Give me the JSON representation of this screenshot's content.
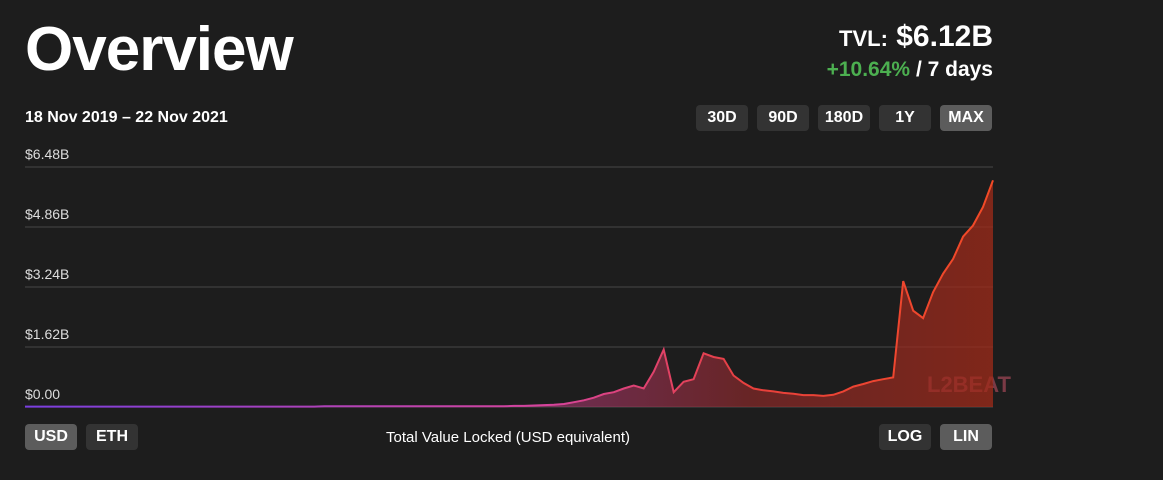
{
  "header": {
    "title": "Overview",
    "tvl_label": "TVL:",
    "tvl_value": "$6.12B",
    "change": "+10.64%",
    "change_period": "/ 7 days"
  },
  "controls": {
    "ranges": [
      "30D",
      "90D",
      "180D",
      "1Y",
      "MAX"
    ],
    "active_range": "MAX",
    "currencies": [
      "USD",
      "ETH"
    ],
    "active_currency": "USD",
    "scales": [
      "LOG",
      "LIN"
    ],
    "active_scale": "LIN"
  },
  "chart_data": {
    "type": "area",
    "subtitle": "18 Nov 2019 – 22 Nov 2021",
    "x_label": "Total Value Locked (USD equivalent)",
    "watermark": "L2BEAT",
    "values": [
      0.01,
      0.01,
      0.01,
      0.01,
      0.01,
      0.01,
      0.01,
      0.01,
      0.01,
      0.01,
      0.01,
      0.01,
      0.01,
      0.01,
      0.01,
      0.01,
      0.01,
      0.01,
      0.01,
      0.01,
      0.01,
      0.01,
      0.01,
      0.01,
      0.01,
      0.01,
      0.01,
      0.01,
      0.01,
      0.01,
      0.02,
      0.02,
      0.02,
      0.02,
      0.02,
      0.02,
      0.02,
      0.02,
      0.02,
      0.02,
      0.02,
      0.02,
      0.02,
      0.02,
      0.02,
      0.02,
      0.02,
      0.02,
      0.02,
      0.03,
      0.03,
      0.04,
      0.05,
      0.06,
      0.08,
      0.13,
      0.18,
      0.25,
      0.35,
      0.4,
      0.5,
      0.58,
      0.5,
      0.95,
      1.55,
      0.4,
      0.68,
      0.75,
      1.45,
      1.35,
      1.3,
      0.85,
      0.65,
      0.5,
      0.45,
      0.42,
      0.38,
      0.36,
      0.32,
      0.32,
      0.3,
      0.33,
      0.42,
      0.55,
      0.62,
      0.7,
      0.75,
      0.8,
      3.4,
      2.6,
      2.4,
      3.1,
      3.6,
      4.0,
      4.6,
      4.9,
      5.4,
      6.12
    ],
    "ylim": [
      0,
      6.48
    ],
    "yticks": [
      {
        "value": 0,
        "label": "$0.00"
      },
      {
        "value": 1.62,
        "label": "$1.62B"
      },
      {
        "value": 3.24,
        "label": "$3.24B"
      },
      {
        "value": 4.86,
        "label": "$4.86B"
      },
      {
        "value": 6.48,
        "label": "$6.48B"
      }
    ],
    "grid": true
  }
}
